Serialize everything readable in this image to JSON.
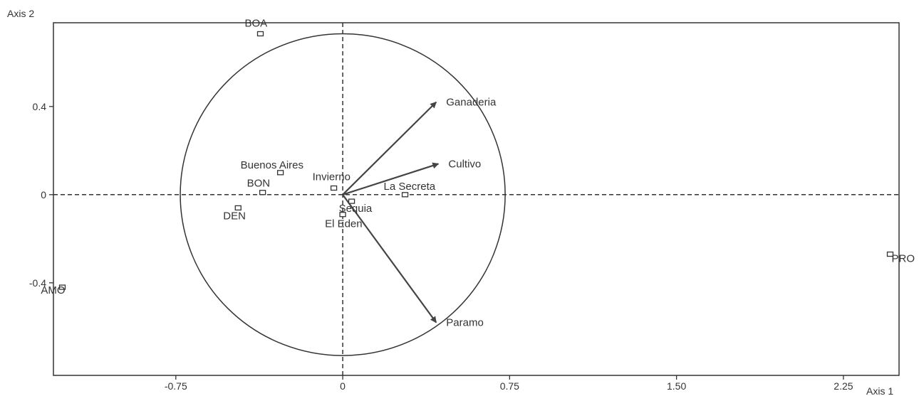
{
  "chart_data": {
    "type": "scatter",
    "title": "",
    "xlabel": "Axis 1",
    "ylabel": "Axis 2",
    "xlim": [
      -1.3,
      2.5
    ],
    "ylim": [
      -0.82,
      0.78
    ],
    "x_ticks": [
      {
        "v": -0.75,
        "label": "-0.75"
      },
      {
        "v": 0,
        "label": "0"
      },
      {
        "v": 0.75,
        "label": "0.75"
      },
      {
        "v": 1.5,
        "label": "1.50"
      },
      {
        "v": 2.25,
        "label": "2.25"
      }
    ],
    "y_ticks": [
      {
        "v": 0.4,
        "label": "0.4"
      },
      {
        "v": 0,
        "label": "0"
      },
      {
        "v": -0.4,
        "label": "-0.4"
      }
    ],
    "circle": {
      "cx": 0,
      "cy": 0,
      "r": 0.73
    },
    "points": [
      {
        "label": "BOA",
        "x": -0.37,
        "y": 0.73
      },
      {
        "label": "Buenos Aires",
        "x": -0.28,
        "y": 0.1
      },
      {
        "label": "BON",
        "x": -0.36,
        "y": 0.01
      },
      {
        "label": "Invierno",
        "x": -0.04,
        "y": 0.03
      },
      {
        "label": "La Secreta",
        "x": 0.28,
        "y": 0.0
      },
      {
        "label": "Sequia",
        "x": 0.04,
        "y": -0.03
      },
      {
        "label": "El Eden",
        "x": 0.0,
        "y": -0.09
      },
      {
        "label": "DEN",
        "x": -0.47,
        "y": -0.06
      },
      {
        "label": "AMO",
        "x": -1.26,
        "y": -0.42
      },
      {
        "label": "PRO",
        "x": 2.46,
        "y": -0.27
      }
    ],
    "vectors": [
      {
        "label": "Ganaderia",
        "x": 0.42,
        "y": 0.42
      },
      {
        "label": "Cultivo",
        "x": 0.43,
        "y": 0.14
      },
      {
        "label": "Paramo",
        "x": 0.42,
        "y": -0.58
      }
    ],
    "grid": false,
    "legend": "none"
  }
}
